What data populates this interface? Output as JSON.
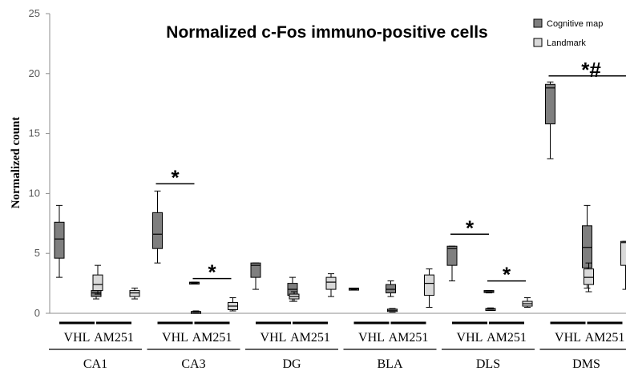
{
  "chart_data": {
    "type": "box",
    "title": "Normalized c-Fos immuno-positive  cells",
    "ylabel": "Normalized count",
    "xlabel": "",
    "ylim": [
      0,
      25
    ],
    "yticks": [
      0,
      5,
      10,
      15,
      20,
      25
    ],
    "grid": false,
    "legend_position": "top-right",
    "regions": [
      "CA1",
      "CA3",
      "DG",
      "BLA",
      "DLS",
      "DMS"
    ],
    "treatments": [
      "VHL",
      "AM251"
    ],
    "colors": {
      "Cognitive map": "#7f7f7f",
      "Landmark": "#d9d9d9"
    },
    "series": [
      {
        "name": "Cognitive map",
        "boxes": [
          {
            "region": "CA1",
            "treatment": "VHL",
            "min": 3.0,
            "q1": 4.6,
            "median": 6.2,
            "q3": 7.6,
            "max": 9.0
          },
          {
            "region": "CA1",
            "treatment": "AM251",
            "min": 1.2,
            "q1": 1.4,
            "median": 1.7,
            "q3": 1.9,
            "max": 2.1
          },
          {
            "region": "CA3",
            "treatment": "VHL",
            "min": 4.2,
            "q1": 5.4,
            "median": 6.6,
            "q3": 8.4,
            "max": 10.2
          },
          {
            "region": "CA3",
            "treatment": "AM251",
            "min": 2.5,
            "q1": 2.5,
            "median": 2.55,
            "q3": 2.6,
            "max": 2.6
          },
          {
            "region": "DG",
            "treatment": "VHL",
            "min": 2.0,
            "q1": 3.0,
            "median": 4.0,
            "q3": 4.2,
            "max": 4.2
          },
          {
            "region": "DG",
            "treatment": "AM251",
            "min": 1.0,
            "q1": 1.5,
            "median": 2.0,
            "q3": 2.5,
            "max": 3.0
          },
          {
            "region": "BLA",
            "treatment": "VHL",
            "min": 2.0,
            "q1": 2.0,
            "median": 2.05,
            "q3": 2.1,
            "max": 2.1
          },
          {
            "region": "BLA",
            "treatment": "AM251",
            "min": 1.4,
            "q1": 1.7,
            "median": 2.0,
            "q3": 2.4,
            "max": 2.7
          },
          {
            "region": "DLS",
            "treatment": "VHL",
            "min": 2.7,
            "q1": 4.0,
            "median": 5.4,
            "q3": 5.6,
            "max": 5.6
          },
          {
            "region": "DLS",
            "treatment": "AM251",
            "min": 1.7,
            "q1": 1.75,
            "median": 1.8,
            "q3": 1.9,
            "max": 1.9
          },
          {
            "region": "DMS",
            "treatment": "VHL",
            "min": 12.9,
            "q1": 15.8,
            "median": 18.8,
            "q3": 19.1,
            "max": 19.3
          },
          {
            "region": "DMS",
            "treatment": "AM251",
            "min": 2.1,
            "q1": 3.8,
            "median": 5.5,
            "q3": 7.3,
            "max": 9.0
          }
        ]
      },
      {
        "name": "Landmark",
        "boxes": [
          {
            "region": "CA1",
            "treatment": "VHL",
            "min": 1.6,
            "q1": 1.9,
            "median": 2.4,
            "q3": 3.2,
            "max": 4.0
          },
          {
            "region": "CA1",
            "treatment": "AM251",
            "min": 1.2,
            "q1": 1.4,
            "median": 1.7,
            "q3": 1.9,
            "max": 2.1
          },
          {
            "region": "CA3",
            "treatment": "VHL",
            "min": 0.0,
            "q1": 0.05,
            "median": 0.1,
            "q3": 0.15,
            "max": 0.2
          },
          {
            "region": "CA3",
            "treatment": "AM251",
            "min": 0.2,
            "q1": 0.3,
            "median": 0.6,
            "q3": 0.9,
            "max": 1.3
          },
          {
            "region": "DG",
            "treatment": "VHL",
            "min": 1.0,
            "q1": 1.2,
            "median": 1.4,
            "q3": 1.6,
            "max": 1.8
          },
          {
            "region": "DG",
            "treatment": "AM251",
            "min": 1.4,
            "q1": 2.0,
            "median": 2.6,
            "q3": 3.0,
            "max": 3.3
          },
          {
            "region": "BLA",
            "treatment": "VHL",
            "min": 0.1,
            "q1": 0.15,
            "median": 0.25,
            "q3": 0.35,
            "max": 0.4
          },
          {
            "region": "BLA",
            "treatment": "AM251",
            "min": 0.5,
            "q1": 1.5,
            "median": 2.5,
            "q3": 3.2,
            "max": 3.7
          },
          {
            "region": "DLS",
            "treatment": "VHL",
            "min": 0.25,
            "q1": 0.3,
            "median": 0.35,
            "q3": 0.4,
            "max": 0.45
          },
          {
            "region": "DLS",
            "treatment": "AM251",
            "min": 0.5,
            "q1": 0.6,
            "median": 0.8,
            "q3": 1.0,
            "max": 1.3
          },
          {
            "region": "DMS",
            "treatment": "VHL",
            "min": 1.8,
            "q1": 2.4,
            "median": 3.0,
            "q3": 3.7,
            "max": 4.2
          },
          {
            "region": "DMS",
            "treatment": "AM251",
            "min": 2.0,
            "q1": 4.0,
            "median": 5.9,
            "q3": 6.0,
            "max": 6.0
          }
        ]
      }
    ],
    "annotations": [
      {
        "text": "*",
        "region": "CA3",
        "treatment": "VHL",
        "y": 10.8
      },
      {
        "text": "*",
        "region": "CA3",
        "treatment": "AM251",
        "y": 2.9
      },
      {
        "text": "*",
        "region": "DLS",
        "treatment": "VHL",
        "y": 6.6
      },
      {
        "text": "*",
        "region": "DLS",
        "treatment": "AM251",
        "y": 2.7
      },
      {
        "text": "*#",
        "region": "DMS",
        "treatment": "ALL",
        "y": 19.8
      }
    ]
  }
}
